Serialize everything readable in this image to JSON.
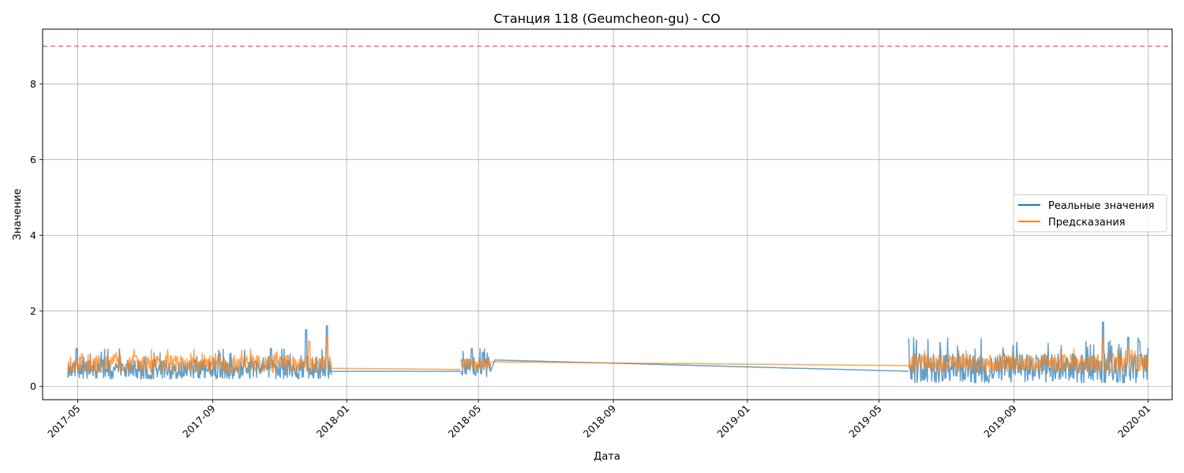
{
  "chart_data": {
    "type": "line",
    "title": "Станция 118 (Geumcheon-gu) - CO",
    "xlabel": "Дата",
    "ylabel": "Значение",
    "xlim": [
      "2017-03-30",
      "2020-01-23"
    ],
    "ylim": [
      -0.35,
      9.45
    ],
    "grid": true,
    "legend_position": "center-right",
    "x_ticks": [
      "2017-05",
      "2017-09",
      "2018-01",
      "2018-05",
      "2018-09",
      "2019-01",
      "2019-05",
      "2019-09",
      "2020-01"
    ],
    "y_ticks": [
      0,
      2,
      4,
      6,
      8
    ],
    "threshold": {
      "value": 9,
      "style": "dashed",
      "color": "#ff4d4d"
    },
    "series": [
      {
        "name": "Реальные значения",
        "color": "#1f77b4",
        "segments": [
          {
            "start": "2017-04-22",
            "end": "2017-12-18",
            "base": 0.4,
            "min": 0.2,
            "max": 1.0,
            "spikes": [
              [
                "2017-11-25",
                1.5
              ],
              [
                "2017-12-14",
                1.6
              ],
              [
                "2017-10-24",
                1.0
              ],
              [
                "2017-04-30",
                1.0
              ]
            ]
          },
          {
            "start": "2018-04-15",
            "end": "2018-05-12",
            "base": 0.45,
            "min": 0.25,
            "max": 1.0,
            "spikes": [
              [
                "2018-04-25",
                1.0
              ],
              [
                "2018-05-05",
                0.9
              ]
            ]
          },
          {
            "start": "2019-05-28",
            "end": "2020-01-01",
            "base": 0.4,
            "min": 0.1,
            "max": 1.3,
            "spikes": [
              [
                "2019-11-21",
                1.7
              ],
              [
                "2019-12-14",
                1.3
              ],
              [
                "2019-12-24",
                1.2
              ]
            ]
          }
        ],
        "connectors": [
          [
            [
              "2017-12-18",
              0.4
            ],
            [
              "2018-04-15",
              0.4
            ]
          ],
          [
            [
              "2018-05-12",
              0.4
            ],
            [
              "2018-05-16",
              0.7
            ],
            [
              "2019-05-28",
              0.4
            ]
          ]
        ]
      },
      {
        "name": "Предсказания",
        "color": "#ff7f0e",
        "segments": [
          {
            "start": "2017-04-22",
            "end": "2017-12-18",
            "base": 0.55,
            "min": 0.3,
            "max": 1.0,
            "spikes": [
              [
                "2017-12-14",
                1.3
              ],
              [
                "2017-11-28",
                1.2
              ]
            ]
          },
          {
            "start": "2018-04-15",
            "end": "2018-05-12",
            "base": 0.55,
            "min": 0.3,
            "max": 0.8,
            "spikes": []
          },
          {
            "start": "2019-05-28",
            "end": "2020-01-01",
            "base": 0.55,
            "min": 0.25,
            "max": 1.0,
            "spikes": [
              [
                "2019-11-21",
                1.25
              ],
              [
                "2019-12-14",
                1.05
              ]
            ]
          }
        ],
        "connectors": [
          [
            [
              "2017-12-18",
              0.48
            ],
            [
              "2018-04-15",
              0.45
            ]
          ],
          [
            [
              "2018-05-12",
              0.65
            ],
            [
              "2019-05-28",
              0.55
            ]
          ]
        ]
      }
    ]
  }
}
